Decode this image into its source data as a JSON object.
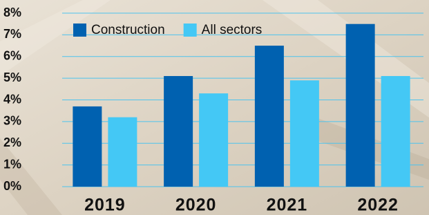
{
  "chart_data": {
    "type": "bar",
    "categories": [
      "2019",
      "2020",
      "2021",
      "2022"
    ],
    "series": [
      {
        "name": "Construction",
        "color": "#0061b0",
        "values": [
          3.7,
          5.1,
          6.5,
          7.5
        ]
      },
      {
        "name": "All sectors",
        "color": "#44c8f5",
        "values": [
          3.2,
          4.3,
          4.9,
          5.1
        ]
      }
    ],
    "ylim": [
      0,
      8
    ],
    "yticks": [
      {
        "value": 0,
        "label": "0%"
      },
      {
        "value": 1,
        "label": "1%"
      },
      {
        "value": 2,
        "label": "2%"
      },
      {
        "value": 3,
        "label": "3%"
      },
      {
        "value": 4,
        "label": "4%"
      },
      {
        "value": 5,
        "label": "5%"
      },
      {
        "value": 6,
        "label": "6%"
      },
      {
        "value": 7,
        "label": "7%"
      },
      {
        "value": 8,
        "label": "8%"
      }
    ],
    "grid": true,
    "legend": "top-left"
  }
}
